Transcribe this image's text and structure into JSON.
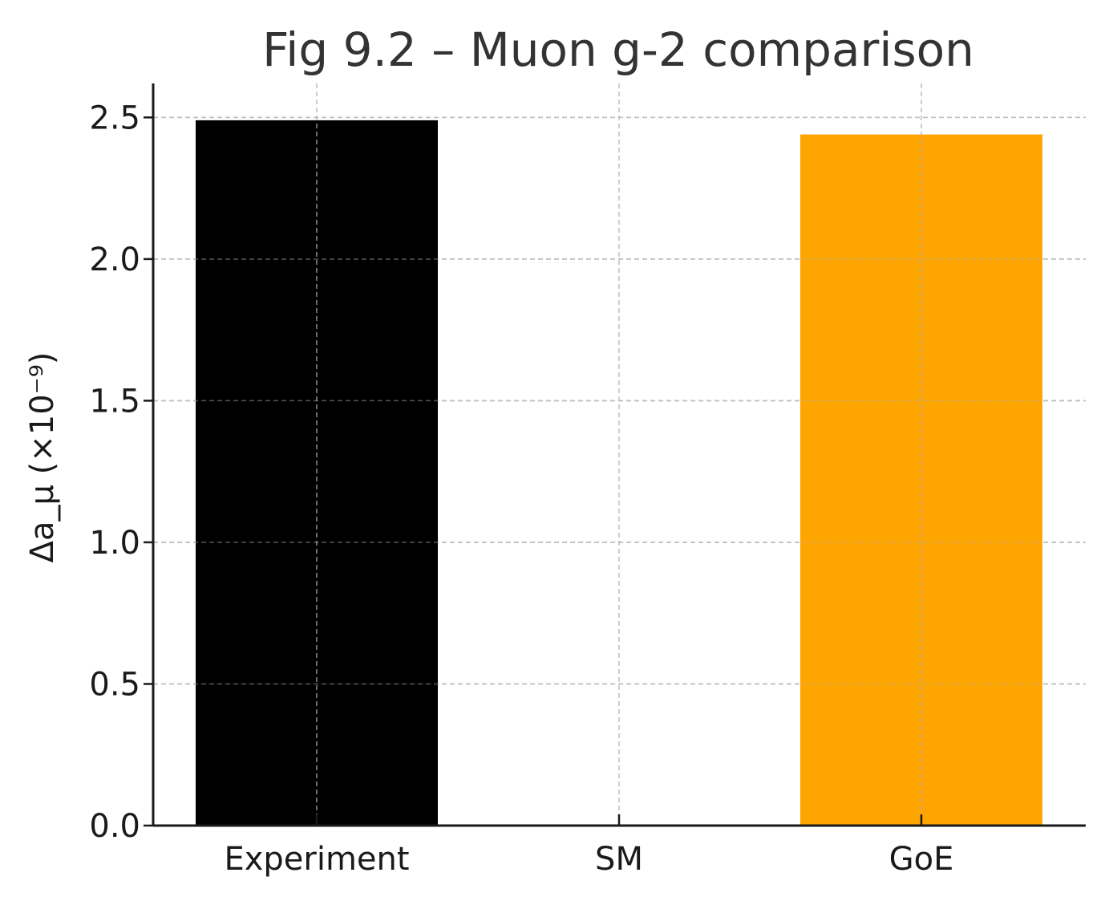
{
  "chart_data": {
    "type": "bar",
    "title": "Fig 9.2 – Muon g-2 comparison",
    "xlabel": "",
    "ylabel": "Δa_μ (×10⁻⁹)",
    "categories": [
      "Experiment",
      "SM",
      "GoE"
    ],
    "values": [
      2.49,
      0.0,
      2.44
    ],
    "colors": [
      "#000000",
      "#ffffff",
      "#ffa500"
    ],
    "ylim": [
      0,
      2.62
    ],
    "yticks": [
      "0.0",
      "0.5",
      "1.0",
      "1.5",
      "2.0",
      "2.5"
    ],
    "ytick_values": [
      0,
      0.5,
      1.0,
      1.5,
      2.0,
      2.5
    ],
    "grid": true,
    "legend": "none"
  }
}
